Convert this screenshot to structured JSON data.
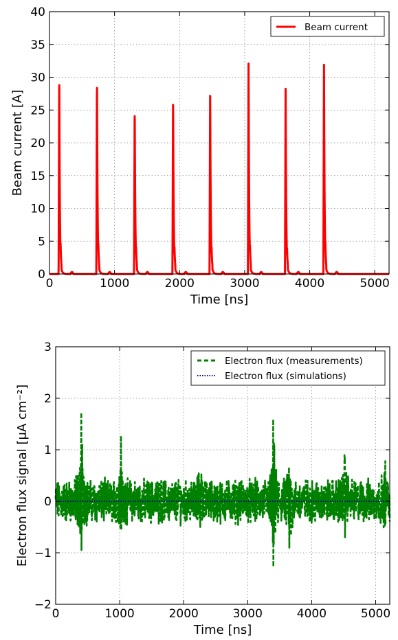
{
  "chart_data": [
    {
      "type": "line",
      "xlabel": "Time [ns]",
      "ylabel": "Beam current [A]",
      "xlim": [
        0,
        5220
      ],
      "ylim": [
        0,
        40
      ],
      "xticks": [
        0,
        1000,
        2000,
        3000,
        4000,
        5000
      ],
      "yticks": [
        0,
        5,
        10,
        15,
        20,
        25,
        30,
        35,
        40
      ],
      "xtick_labels": [
        "0",
        "1000",
        "2000",
        "3000",
        "4000",
        "5000"
      ],
      "ytick_labels": [
        "0",
        "5",
        "10",
        "15",
        "20",
        "25",
        "30",
        "35",
        "40"
      ],
      "grid": true,
      "legend_position": "top-right",
      "series": [
        {
          "name": "Beam current",
          "color": "#ff0000",
          "style": "solid",
          "pulse_times": [
            150,
            730,
            1310,
            1900,
            2470,
            3060,
            3630,
            4220
          ],
          "pulse_peaks": [
            30.7,
            31.0,
            26.7,
            27.8,
            28.7,
            33.0,
            28.5,
            32.5
          ],
          "pulse_width_ns": 35
        }
      ]
    },
    {
      "type": "line",
      "xlabel": "Time [ns]",
      "ylabel": "Electron flux signal [μA cm⁻²]",
      "xlim": [
        0,
        5220
      ],
      "ylim": [
        -2,
        3
      ],
      "xticks": [
        0,
        1000,
        2000,
        3000,
        4000,
        5000
      ],
      "yticks": [
        -2,
        -1,
        0,
        1,
        2,
        3
      ],
      "xtick_labels": [
        "0",
        "1000",
        "2000",
        "3000",
        "4000",
        "5000"
      ],
      "ytick_labels": [
        "−2",
        "−1",
        "0",
        "1",
        "2",
        "3"
      ],
      "grid": true,
      "legend_position": "top-right",
      "series": [
        {
          "name": "Electron flux (measurements)",
          "color": "#008000",
          "style": "dashed",
          "noise_amplitude": 0.32,
          "bursts": [
            {
              "t": 400,
              "peak": 1.72,
              "trough": -1.1
            },
            {
              "t": 1020,
              "peak": 1.27,
              "trough": -0.65
            },
            {
              "t": 2260,
              "peak": 1.08,
              "trough": -0.5
            },
            {
              "t": 3400,
              "peak": 1.59,
              "trough": -1.27
            },
            {
              "t": 3650,
              "peak": 1.0,
              "trough": -0.9
            },
            {
              "t": 4520,
              "peak": 1.2,
              "trough": -0.7
            },
            {
              "t": 5150,
              "peak": 0.78,
              "trough": -0.6
            }
          ]
        },
        {
          "name": "Electron flux (simulations)",
          "color": "#00008b",
          "style": "dotted",
          "values": [
            0,
            0
          ],
          "x": [
            0,
            5220
          ]
        }
      ]
    }
  ]
}
